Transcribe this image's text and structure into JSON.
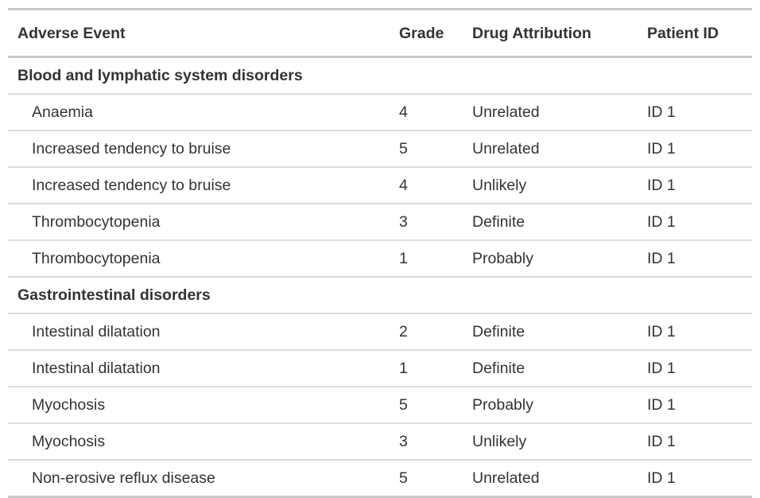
{
  "chart_data": {
    "type": "table",
    "title": "",
    "columns": [
      "Adverse Event",
      "Grade",
      "Drug Attribution",
      "Patient ID"
    ],
    "groups": [
      {
        "label": "Blood and lymphatic system disorders",
        "rows": [
          [
            "Anaemia",
            "4",
            "Unrelated",
            "ID 1"
          ],
          [
            "Increased tendency to bruise",
            "5",
            "Unrelated",
            "ID 1"
          ],
          [
            "Increased tendency to bruise",
            "4",
            "Unlikely",
            "ID 1"
          ],
          [
            "Thrombocytopenia",
            "3",
            "Definite",
            "ID 1"
          ],
          [
            "Thrombocytopenia",
            "1",
            "Probably",
            "ID 1"
          ]
        ]
      },
      {
        "label": "Gastrointestinal disorders",
        "rows": [
          [
            "Intestinal dilatation",
            "2",
            "Definite",
            "ID 1"
          ],
          [
            "Intestinal dilatation",
            "1",
            "Definite",
            "ID 1"
          ],
          [
            "Myochosis",
            "5",
            "Probably",
            "ID 1"
          ],
          [
            "Myochosis",
            "3",
            "Unlikely",
            "ID 1"
          ],
          [
            "Non-erosive reflux disease",
            "5",
            "Unrelated",
            "ID 1"
          ]
        ]
      }
    ],
    "layout": {
      "grid": "horizontal-row-dividers",
      "legend_position": "none"
    },
    "colors": {
      "text": "#333333",
      "border_heavy": "#c9c9c9",
      "border_light": "#dddddd",
      "background": "#ffffff"
    }
  }
}
